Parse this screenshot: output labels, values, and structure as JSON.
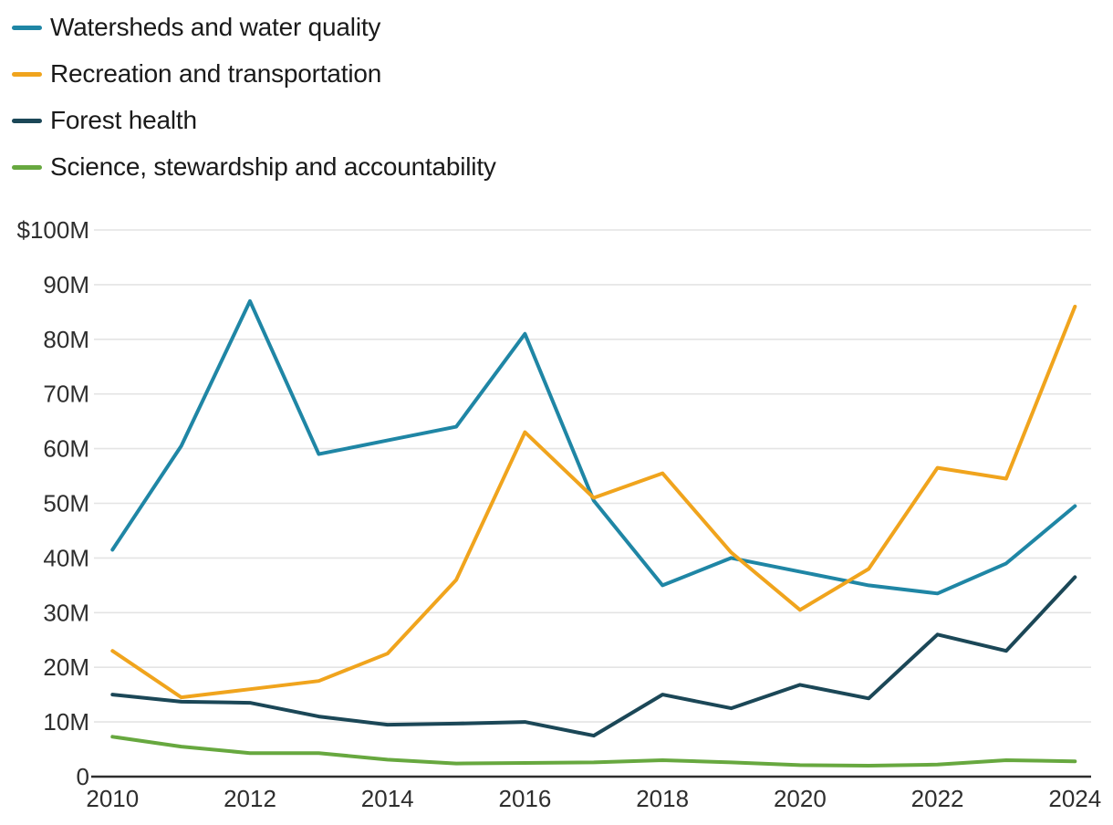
{
  "chart_data": {
    "type": "line",
    "title": "",
    "xlabel": "",
    "ylabel": "",
    "xlim": [
      2010,
      2024
    ],
    "ylim": [
      0,
      100
    ],
    "grid": "horizontal",
    "legend_position": "top-left",
    "x": [
      2010,
      2011,
      2012,
      2013,
      2014,
      2015,
      2016,
      2017,
      2018,
      2019,
      2020,
      2021,
      2022,
      2023,
      2024
    ],
    "series": [
      {
        "name": "Watersheds and water quality",
        "color": "#1f86a5",
        "values": [
          41.5,
          60.5,
          87,
          59,
          61.5,
          64,
          81,
          50.5,
          35,
          40,
          37.5,
          35,
          33.5,
          39,
          49.5
        ]
      },
      {
        "name": "Recreation and transportation",
        "color": "#f0a41d",
        "values": [
          23,
          14.5,
          16,
          17.5,
          22.5,
          36,
          63,
          51,
          55.5,
          41,
          30.5,
          38,
          56.5,
          54.5,
          86
        ]
      },
      {
        "name": "Forest health",
        "color": "#1b4757",
        "values": [
          15,
          13.7,
          13.5,
          11,
          9.5,
          9.7,
          10,
          7.5,
          15,
          12.5,
          16.8,
          14.3,
          26,
          23,
          36.5
        ]
      },
      {
        "name": "Science, stewardship and accountability",
        "color": "#67a83f",
        "values": [
          7.3,
          5.5,
          4.3,
          4.3,
          3.1,
          2.4,
          2.5,
          2.6,
          3.0,
          2.6,
          2.1,
          2.0,
          2.2,
          3.0,
          2.8
        ]
      }
    ],
    "y_ticks": [
      {
        "value": 100,
        "label": "$100M"
      },
      {
        "value": 90,
        "label": "90M"
      },
      {
        "value": 80,
        "label": "80M"
      },
      {
        "value": 70,
        "label": "70M"
      },
      {
        "value": 60,
        "label": "60M"
      },
      {
        "value": 50,
        "label": "50M"
      },
      {
        "value": 40,
        "label": "40M"
      },
      {
        "value": 30,
        "label": "30M"
      },
      {
        "value": 20,
        "label": "20M"
      },
      {
        "value": 10,
        "label": "10M"
      },
      {
        "value": 0,
        "label": "0"
      }
    ],
    "x_ticks": [
      {
        "value": 2010,
        "label": "2010"
      },
      {
        "value": 2012,
        "label": "2012"
      },
      {
        "value": 2014,
        "label": "2014"
      },
      {
        "value": 2016,
        "label": "2016"
      },
      {
        "value": 2018,
        "label": "2018"
      },
      {
        "value": 2020,
        "label": "2020"
      },
      {
        "value": 2022,
        "label": "2022"
      },
      {
        "value": 2024,
        "label": "2024"
      }
    ]
  }
}
